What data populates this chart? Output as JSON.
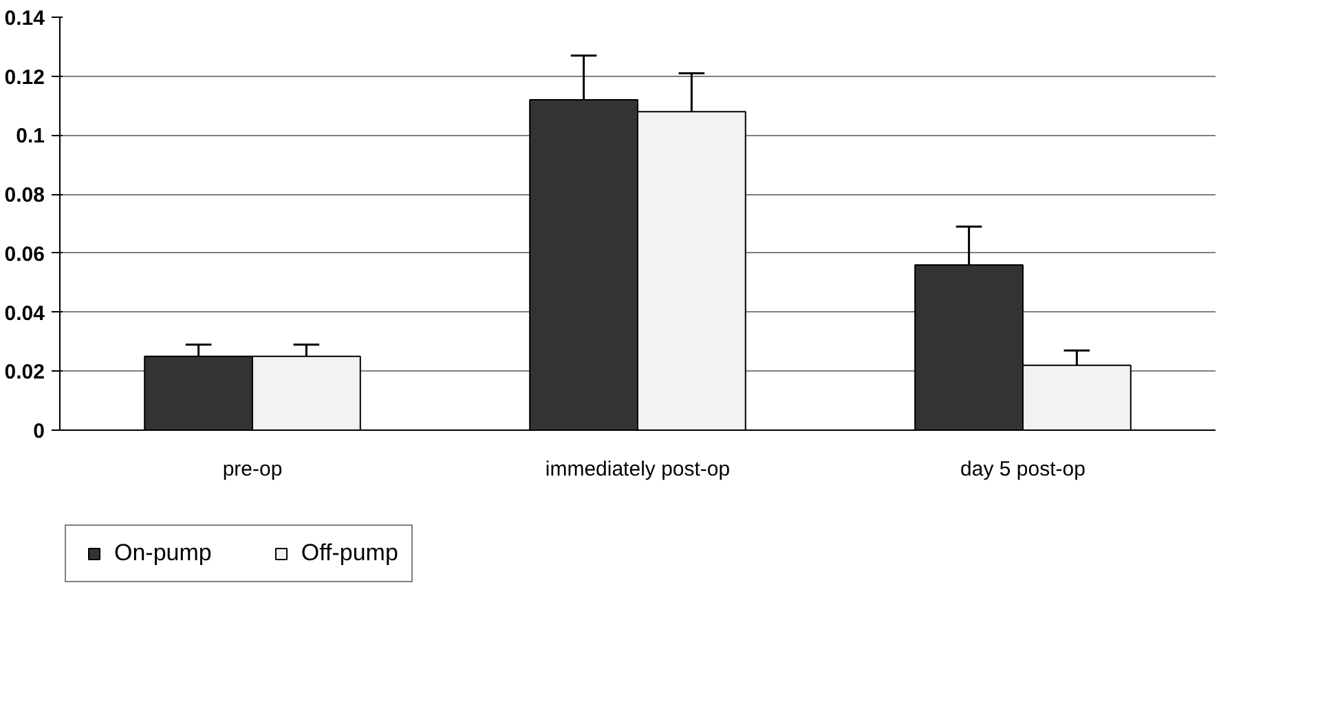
{
  "chart_data": {
    "type": "bar",
    "categories": [
      "pre-op",
      "immediately post-op",
      "day 5 post-op"
    ],
    "series": [
      {
        "name": "On-pump",
        "color": "#333333",
        "values": [
          0.025,
          0.112,
          0.056
        ],
        "errors": [
          [
            0.025,
            0.029
          ],
          [
            0.112,
            0.127
          ],
          [
            0.056,
            0.069
          ]
        ]
      },
      {
        "name": "Off-pump",
        "color": "#f2f2f2",
        "values": [
          0.025,
          0.108,
          0.022
        ],
        "errors": [
          [
            0.025,
            0.029
          ],
          [
            0.108,
            0.121
          ],
          [
            0.022,
            0.027
          ]
        ]
      }
    ],
    "ylim": [
      0,
      0.14
    ],
    "yticks": [
      0,
      0.02,
      0.04,
      0.06,
      0.08,
      0.1,
      0.12,
      0.14
    ],
    "grid": "y",
    "legend": "bottom left"
  }
}
